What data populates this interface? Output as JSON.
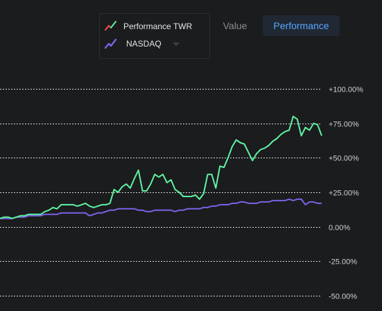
{
  "legend": {
    "items": [
      {
        "label": "Performance TWR",
        "icon": "line-trend-icon",
        "colors": [
          "#ff4d4d",
          "#5ef3a3"
        ]
      },
      {
        "label": "NASDAQ",
        "icon": "line-trend-icon",
        "colors": [
          "#7b62e6"
        ]
      }
    ]
  },
  "toggle": {
    "value_label": "Value",
    "performance_label": "Performance",
    "selected": "Performance"
  },
  "chart_data": {
    "type": "line",
    "title": "",
    "xlabel": "",
    "ylabel": "",
    "ylim": [
      -50,
      100
    ],
    "y_ticks": [
      "+100.00%",
      "+75.00%",
      "+50.00%",
      "+25.00%",
      "0.00%",
      "-25.00%",
      "-50.00%"
    ],
    "y_tick_values": [
      100,
      75,
      50,
      25,
      0,
      -25,
      -50
    ],
    "grid": true,
    "series": [
      {
        "name": "Performance TWR",
        "color": "#5ef3a3",
        "values": [
          6,
          7,
          7,
          6,
          7,
          8,
          8,
          9,
          9,
          9,
          9,
          11,
          12,
          14,
          13,
          16,
          16,
          16,
          16,
          15,
          16,
          17,
          15,
          14,
          15,
          16,
          16,
          17,
          27,
          25,
          29,
          31,
          28,
          35,
          41,
          26,
          26,
          31,
          38,
          36,
          38,
          32,
          34,
          27,
          25,
          22,
          22,
          22,
          23,
          20,
          24,
          38,
          38,
          28,
          44,
          43,
          50,
          58,
          63,
          61,
          60,
          54,
          48,
          53,
          56,
          57,
          59,
          62,
          64,
          67,
          69,
          70,
          80,
          78,
          66,
          72,
          70,
          75,
          74,
          66
        ]
      },
      {
        "name": "NASDAQ",
        "color": "#7b62e6",
        "values": [
          6,
          6,
          6,
          6,
          7,
          7,
          7,
          8,
          8,
          8,
          8,
          9,
          9,
          9,
          9,
          10,
          10,
          10,
          10,
          10,
          10,
          10,
          8,
          9,
          10,
          10,
          11,
          12,
          12,
          13,
          13,
          13,
          13,
          13,
          12,
          12,
          11,
          11,
          12,
          12,
          12,
          12,
          12,
          11,
          12,
          12,
          13,
          13,
          13,
          13,
          14,
          14,
          15,
          15,
          16,
          16,
          16,
          17,
          17,
          18,
          18,
          17,
          17,
          17,
          18,
          18,
          18,
          19,
          19,
          19,
          19,
          20,
          19,
          20,
          20,
          16,
          18,
          18,
          17,
          17
        ]
      }
    ]
  }
}
